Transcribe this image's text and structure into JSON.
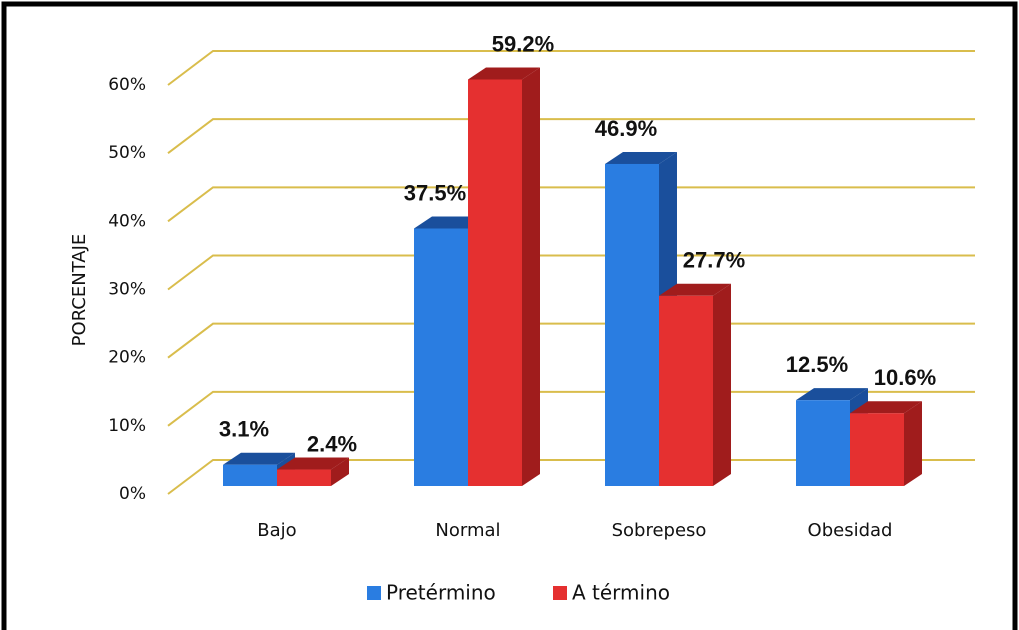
{
  "chart_data": {
    "type": "bar3d",
    "y_label": "PORCENTAJE",
    "categories": [
      "Bajo",
      "Normal",
      "Sobrepeso",
      "Obesidad"
    ],
    "series": [
      {
        "name": "Pretérmino",
        "color": "#2a7de1",
        "side_color": "#1a4f9c",
        "values": [
          3.1,
          37.5,
          46.9,
          12.5
        ],
        "value_labels": [
          "3.1%",
          "37.5%",
          "46.9%",
          "12.5%"
        ]
      },
      {
        "name": "A término",
        "color": "#e53030",
        "side_color": "#a01c1c",
        "values": [
          2.4,
          59.2,
          27.7,
          10.6
        ],
        "value_labels": [
          "2.4%",
          "59.2%",
          "27.7%",
          "10.6%"
        ]
      }
    ],
    "ylim": [
      0,
      60
    ],
    "yticks": [
      {
        "value": 0,
        "label": "0%"
      },
      {
        "value": 10,
        "label": "10%"
      },
      {
        "value": 20,
        "label": "20%"
      },
      {
        "value": 30,
        "label": "30%"
      },
      {
        "value": 40,
        "label": "40%"
      },
      {
        "value": 50,
        "label": "50%"
      },
      {
        "value": 60,
        "label": "60%"
      }
    ],
    "grid": true,
    "grid_color": "#d9bd4c",
    "legend": "bottom"
  }
}
